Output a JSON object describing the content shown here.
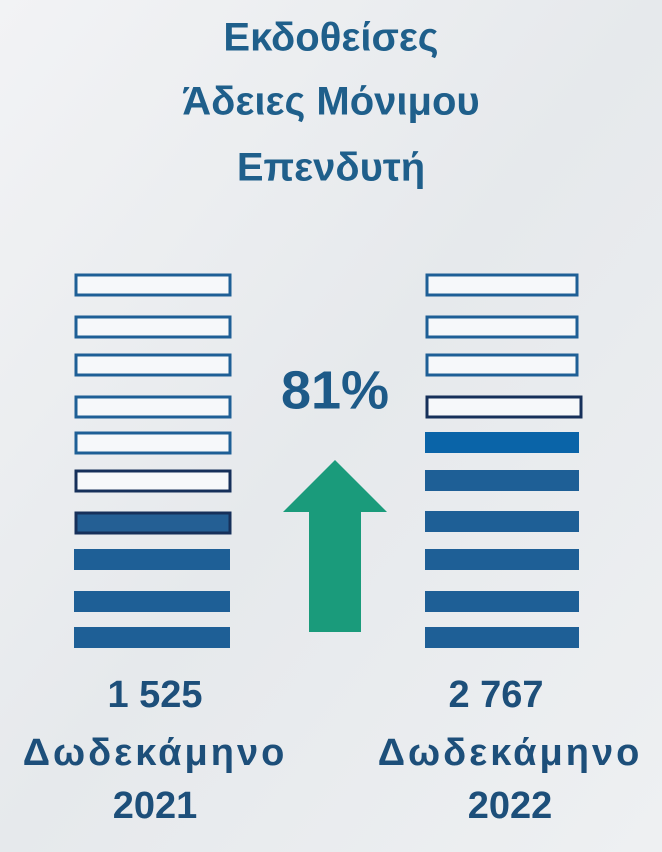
{
  "title": [
    "Εκδοθείσες",
    "Άδειες Μόνιμου",
    "Επενδυτή"
  ],
  "change": "81%",
  "periods": [
    {
      "value": "1 525",
      "label": "Δωδεκάμηνο",
      "year": "2021"
    },
    {
      "value": "2 767",
      "label": "Δωδεκάμηνο",
      "year": "2022"
    }
  ]
}
